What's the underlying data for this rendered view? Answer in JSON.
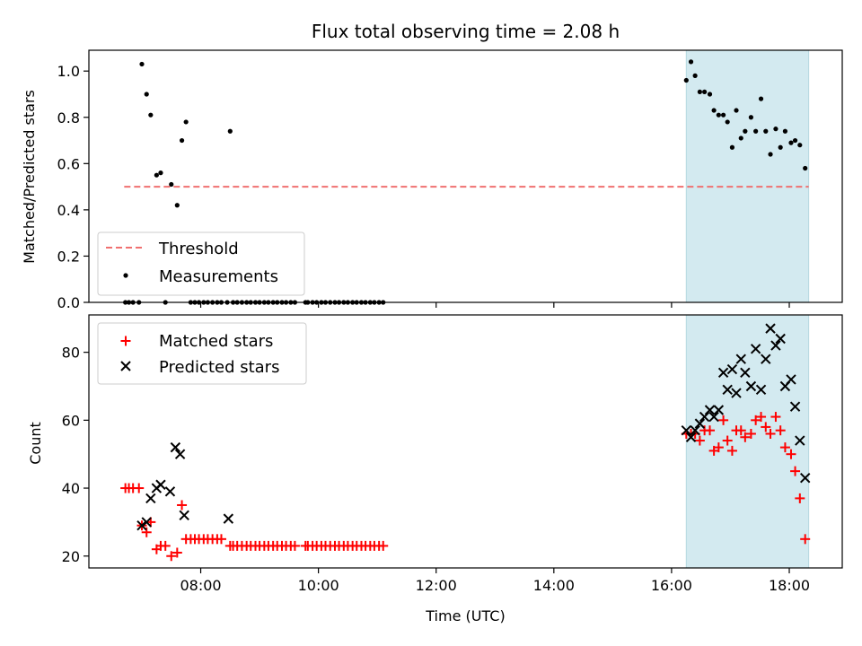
{
  "chart_data": {
    "title": "Flux total observing time = 2.08 h",
    "xlabel": "Time (UTC)",
    "x_unit": "hours UTC",
    "xlim": [
      6.1,
      18.9
    ],
    "xticks": [
      8,
      10,
      12,
      14,
      16,
      18
    ],
    "xtick_labels": [
      "08:00",
      "10:00",
      "12:00",
      "14:00",
      "16:00",
      "18:00"
    ],
    "shaded_region": {
      "x_start": 16.25,
      "x_end": 18.33,
      "color": "#d3eaf0"
    },
    "top": {
      "type": "scatter",
      "ylabel": "Matched/Predicted stars",
      "ylim": [
        0,
        1.09
      ],
      "yticks": [
        0.0,
        0.2,
        0.4,
        0.6,
        0.8,
        1.0
      ],
      "ytick_labels": [
        "0.0",
        "0.2",
        "0.4",
        "0.6",
        "0.8",
        "1.0"
      ],
      "threshold": {
        "label": "Threshold",
        "y": 0.5,
        "x_start": 6.7,
        "x_end": 18.33,
        "color": "#f07070"
      },
      "measurements": {
        "label": "Measurements",
        "color": "#000000",
        "points": [
          [
            6.72,
            0.0
          ],
          [
            6.78,
            0.0
          ],
          [
            6.85,
            0.0
          ],
          [
            6.95,
            0.0
          ],
          [
            7.0,
            1.03
          ],
          [
            7.08,
            0.9
          ],
          [
            7.15,
            0.81
          ],
          [
            7.25,
            0.55
          ],
          [
            7.32,
            0.56
          ],
          [
            7.4,
            0.0
          ],
          [
            7.5,
            0.51
          ],
          [
            7.6,
            0.42
          ],
          [
            7.68,
            0.7
          ],
          [
            7.75,
            0.78
          ],
          [
            8.5,
            0.74
          ],
          [
            7.83,
            0.0
          ],
          [
            7.9,
            0.0
          ],
          [
            7.97,
            0.0
          ],
          [
            8.05,
            0.0
          ],
          [
            8.12,
            0.0
          ],
          [
            8.2,
            0.0
          ],
          [
            8.28,
            0.0
          ],
          [
            8.35,
            0.0
          ],
          [
            8.45,
            0.0
          ],
          [
            8.55,
            0.0
          ],
          [
            8.62,
            0.0
          ],
          [
            8.7,
            0.0
          ],
          [
            8.78,
            0.0
          ],
          [
            8.85,
            0.0
          ],
          [
            8.93,
            0.0
          ],
          [
            9.0,
            0.0
          ],
          [
            9.08,
            0.0
          ],
          [
            9.15,
            0.0
          ],
          [
            9.23,
            0.0
          ],
          [
            9.3,
            0.0
          ],
          [
            9.38,
            0.0
          ],
          [
            9.45,
            0.0
          ],
          [
            9.53,
            0.0
          ],
          [
            9.6,
            0.0
          ],
          [
            9.78,
            0.0
          ],
          [
            9.82,
            0.0
          ],
          [
            9.9,
            0.0
          ],
          [
            9.97,
            0.0
          ],
          [
            10.05,
            0.0
          ],
          [
            10.12,
            0.0
          ],
          [
            10.2,
            0.0
          ],
          [
            10.28,
            0.0
          ],
          [
            10.35,
            0.0
          ],
          [
            10.43,
            0.0
          ],
          [
            10.5,
            0.0
          ],
          [
            10.58,
            0.0
          ],
          [
            10.65,
            0.0
          ],
          [
            10.73,
            0.0
          ],
          [
            10.8,
            0.0
          ],
          [
            10.88,
            0.0
          ],
          [
            10.95,
            0.0
          ],
          [
            11.03,
            0.0
          ],
          [
            11.1,
            0.0
          ],
          [
            16.25,
            0.96
          ],
          [
            16.33,
            1.04
          ],
          [
            16.4,
            0.98
          ],
          [
            16.48,
            0.91
          ],
          [
            16.56,
            0.91
          ],
          [
            16.65,
            0.9
          ],
          [
            16.72,
            0.83
          ],
          [
            16.8,
            0.81
          ],
          [
            16.88,
            0.81
          ],
          [
            16.95,
            0.78
          ],
          [
            17.03,
            0.67
          ],
          [
            17.1,
            0.83
          ],
          [
            17.18,
            0.71
          ],
          [
            17.25,
            0.74
          ],
          [
            17.35,
            0.8
          ],
          [
            17.43,
            0.74
          ],
          [
            17.52,
            0.88
          ],
          [
            17.6,
            0.74
          ],
          [
            17.68,
            0.64
          ],
          [
            17.77,
            0.75
          ],
          [
            17.85,
            0.67
          ],
          [
            17.93,
            0.74
          ],
          [
            18.03,
            0.69
          ],
          [
            18.1,
            0.7
          ],
          [
            18.18,
            0.68
          ],
          [
            18.27,
            0.58
          ]
        ]
      }
    },
    "bottom": {
      "type": "scatter",
      "ylabel": "Count",
      "ylim": [
        16.5,
        91
      ],
      "yticks": [
        20,
        40,
        60,
        80
      ],
      "ytick_labels": [
        "20",
        "40",
        "60",
        "80"
      ],
      "matched": {
        "label": "Matched stars",
        "color": "#ff0000",
        "points": [
          [
            6.72,
            40
          ],
          [
            6.78,
            40
          ],
          [
            6.85,
            40
          ],
          [
            6.95,
            40
          ],
          [
            7.0,
            29
          ],
          [
            7.08,
            27
          ],
          [
            7.15,
            30
          ],
          [
            7.25,
            22
          ],
          [
            7.32,
            23
          ],
          [
            7.4,
            23
          ],
          [
            7.5,
            20
          ],
          [
            7.6,
            21
          ],
          [
            7.68,
            35
          ],
          [
            7.75,
            25
          ],
          [
            7.83,
            25
          ],
          [
            7.9,
            25
          ],
          [
            7.97,
            25
          ],
          [
            8.05,
            25
          ],
          [
            8.12,
            25
          ],
          [
            8.2,
            25
          ],
          [
            8.28,
            25
          ],
          [
            8.35,
            25
          ],
          [
            8.5,
            23
          ],
          [
            8.55,
            23
          ],
          [
            8.62,
            23
          ],
          [
            8.7,
            23
          ],
          [
            8.78,
            23
          ],
          [
            8.85,
            23
          ],
          [
            8.93,
            23
          ],
          [
            9.0,
            23
          ],
          [
            9.08,
            23
          ],
          [
            9.15,
            23
          ],
          [
            9.23,
            23
          ],
          [
            9.3,
            23
          ],
          [
            9.38,
            23
          ],
          [
            9.45,
            23
          ],
          [
            9.53,
            23
          ],
          [
            9.6,
            23
          ],
          [
            9.78,
            23
          ],
          [
            9.82,
            23
          ],
          [
            9.9,
            23
          ],
          [
            9.97,
            23
          ],
          [
            10.05,
            23
          ],
          [
            10.12,
            23
          ],
          [
            10.2,
            23
          ],
          [
            10.28,
            23
          ],
          [
            10.35,
            23
          ],
          [
            10.43,
            23
          ],
          [
            10.5,
            23
          ],
          [
            10.58,
            23
          ],
          [
            10.65,
            23
          ],
          [
            10.73,
            23
          ],
          [
            10.8,
            23
          ],
          [
            10.88,
            23
          ],
          [
            10.95,
            23
          ],
          [
            11.03,
            23
          ],
          [
            11.1,
            23
          ],
          [
            16.25,
            56
          ],
          [
            16.33,
            56
          ],
          [
            16.4,
            56
          ],
          [
            16.48,
            54
          ],
          [
            16.56,
            57
          ],
          [
            16.65,
            57
          ],
          [
            16.72,
            51
          ],
          [
            16.8,
            52
          ],
          [
            16.88,
            60
          ],
          [
            16.95,
            54
          ],
          [
            17.03,
            51
          ],
          [
            17.1,
            57
          ],
          [
            17.18,
            57
          ],
          [
            17.25,
            55
          ],
          [
            17.35,
            56
          ],
          [
            17.43,
            60
          ],
          [
            17.52,
            61
          ],
          [
            17.6,
            58
          ],
          [
            17.68,
            56
          ],
          [
            17.77,
            61
          ],
          [
            17.85,
            57
          ],
          [
            17.93,
            52
          ],
          [
            18.03,
            50
          ],
          [
            18.1,
            45
          ],
          [
            18.18,
            37
          ],
          [
            18.27,
            25
          ]
        ]
      },
      "predicted": {
        "label": "Predicted stars",
        "color": "#000000",
        "points": [
          [
            7.0,
            29
          ],
          [
            7.08,
            30
          ],
          [
            7.15,
            37
          ],
          [
            7.25,
            40
          ],
          [
            7.32,
            41
          ],
          [
            7.48,
            39
          ],
          [
            7.57,
            52
          ],
          [
            7.65,
            50
          ],
          [
            7.72,
            32
          ],
          [
            8.47,
            31
          ],
          [
            16.25,
            57
          ],
          [
            16.33,
            55
          ],
          [
            16.4,
            57
          ],
          [
            16.48,
            59
          ],
          [
            16.56,
            61
          ],
          [
            16.65,
            63
          ],
          [
            16.72,
            61
          ],
          [
            16.8,
            63
          ],
          [
            16.88,
            74
          ],
          [
            16.95,
            69
          ],
          [
            17.03,
            75
          ],
          [
            17.1,
            68
          ],
          [
            17.18,
            78
          ],
          [
            17.25,
            74
          ],
          [
            17.35,
            70
          ],
          [
            17.43,
            81
          ],
          [
            17.52,
            69
          ],
          [
            17.6,
            78
          ],
          [
            17.68,
            87
          ],
          [
            17.77,
            82
          ],
          [
            17.85,
            84
          ],
          [
            17.93,
            70
          ],
          [
            18.03,
            72
          ],
          [
            18.1,
            64
          ],
          [
            18.18,
            54
          ],
          [
            18.27,
            43
          ]
        ]
      }
    }
  }
}
